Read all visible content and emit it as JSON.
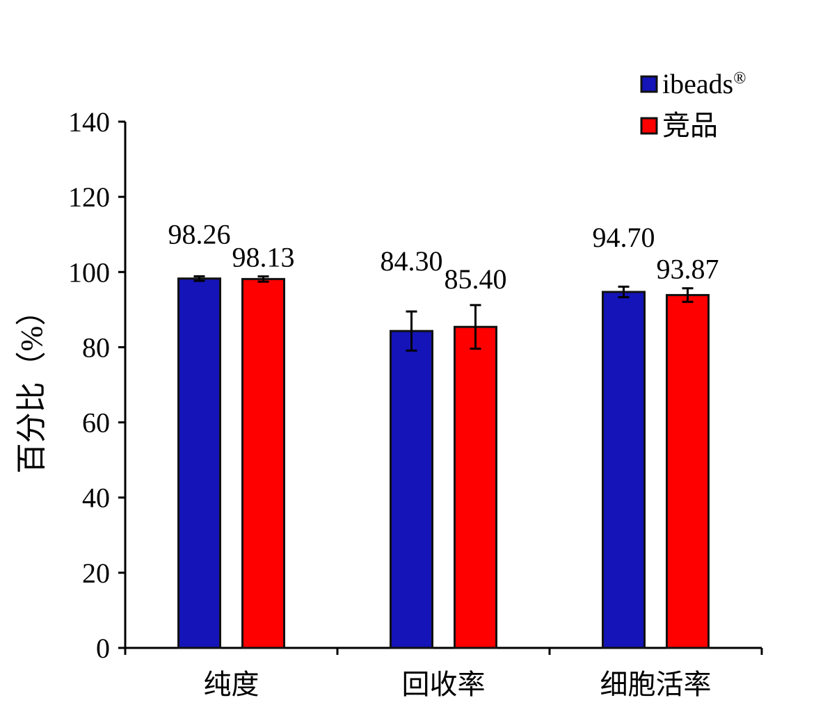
{
  "chart_data": {
    "type": "bar",
    "categories": [
      "纯度",
      "回收率",
      "细胞活率"
    ],
    "series": [
      {
        "name": "ibeads",
        "name_sup": "®",
        "color": "#1414b8",
        "values": [
          98.26,
          84.3,
          94.7
        ],
        "errors": [
          0.6,
          5.2,
          1.4
        ],
        "labels": [
          "98.26",
          "84.30",
          "94.70"
        ]
      },
      {
        "name": "竞品",
        "name_sup": "",
        "color": "#ff0000",
        "values": [
          98.13,
          85.4,
          93.87
        ],
        "errors": [
          0.7,
          5.8,
          1.8
        ],
        "labels": [
          "98.13",
          "85.40",
          "93.87"
        ]
      }
    ],
    "ylabel": "百分比（%）",
    "xlabel": "",
    "title": "",
    "ylim": [
      0,
      140
    ],
    "yticks": [
      "0",
      "20",
      "40",
      "60",
      "80",
      "100",
      "120",
      "140"
    ],
    "grid": false,
    "legend_position": "top-right"
  }
}
